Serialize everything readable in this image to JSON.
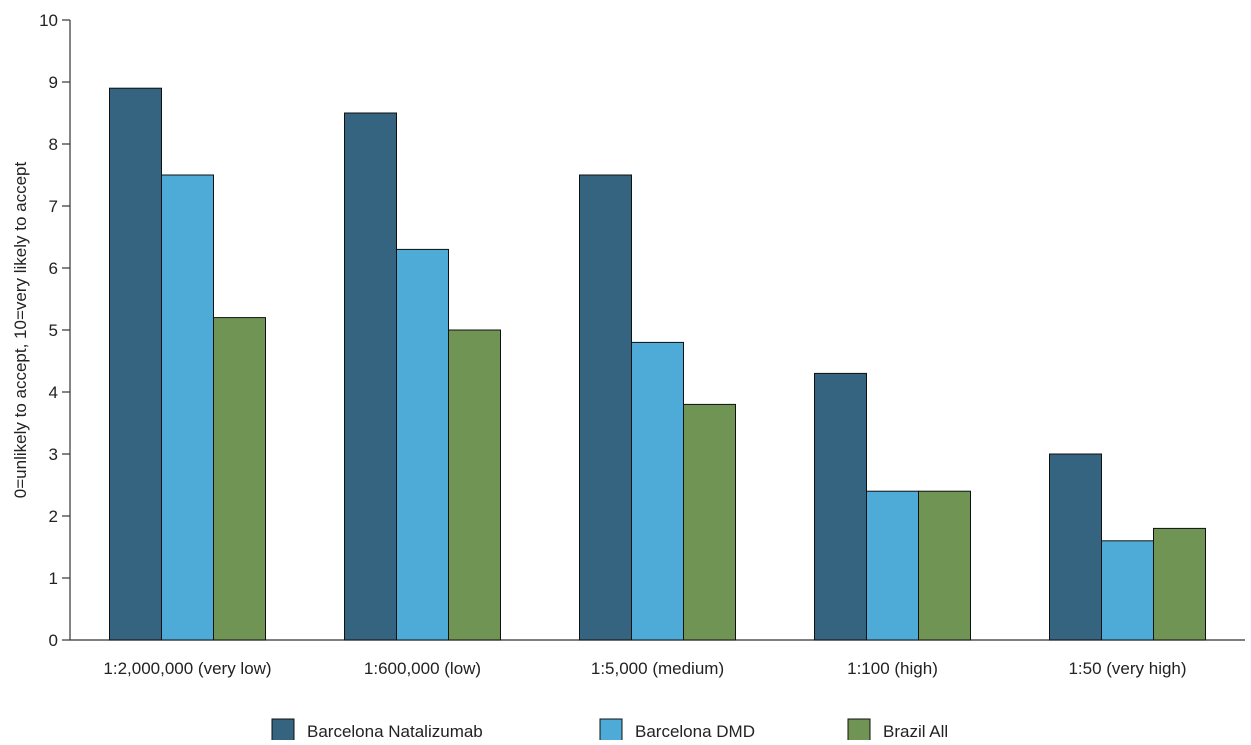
{
  "chart_data": {
    "type": "bar",
    "title": "",
    "xlabel": "",
    "ylabel": "0=unlikely to accept, 10=very likely to accept",
    "ylim": [
      0,
      10
    ],
    "yticks": [
      0,
      1,
      2,
      3,
      4,
      5,
      6,
      7,
      8,
      9,
      10
    ],
    "grid": false,
    "legend_position": "bottom",
    "categories": [
      "1:2,000,000 (very low)",
      "1:600,000 (low)",
      "1:5,000 (medium)",
      "1:100 (high)",
      "1:50 (very high)"
    ],
    "series": [
      {
        "name": "Barcelona Natalizumab",
        "color": "#34647f",
        "values": [
          8.9,
          8.5,
          7.5,
          4.3,
          3.0
        ]
      },
      {
        "name": "Barcelona DMD",
        "color": "#4eaad6",
        "values": [
          7.5,
          6.3,
          4.8,
          2.4,
          1.6
        ]
      },
      {
        "name": "Brazil All",
        "color": "#6f9454",
        "values": [
          5.2,
          5.0,
          3.8,
          2.4,
          1.8
        ]
      }
    ]
  }
}
